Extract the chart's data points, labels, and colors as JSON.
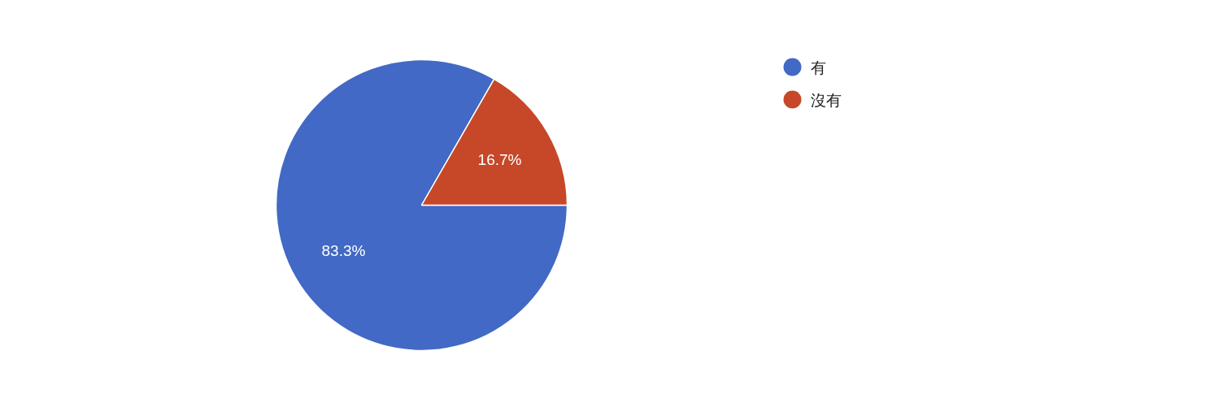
{
  "chart_data": {
    "type": "pie",
    "categories": [
      "有",
      "沒有"
    ],
    "values": [
      83.3,
      16.7
    ],
    "colors": [
      "#4169c5",
      "#c64828"
    ],
    "value_labels": [
      "83.3%",
      "16.7%"
    ],
    "legend": "right"
  }
}
